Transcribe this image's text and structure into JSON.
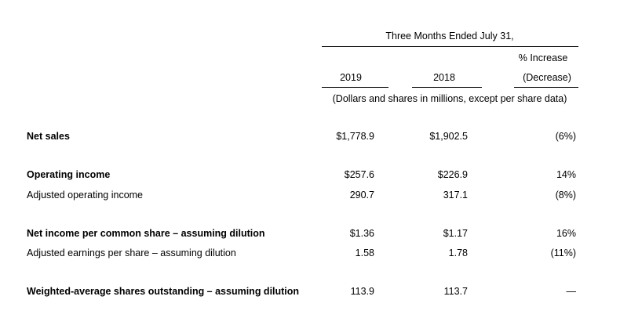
{
  "header": {
    "period": "Three Months Ended July 31,",
    "columns": [
      "2019",
      "2018"
    ],
    "change_column": [
      "% Increase",
      "(Decrease)"
    ],
    "unit_note": "(Dollars and shares in millions, except per share data)"
  },
  "table": {
    "rows": [
      {
        "label": "Net sales",
        "bold": true,
        "cells": [
          "$1,778.9",
          "$1,902.5",
          "(6%)"
        ]
      },
      {
        "label": "Operating income",
        "bold": true,
        "cells": [
          "$257.6",
          "$226.9",
          "14%"
        ]
      },
      {
        "label": "Adjusted operating income",
        "bold": false,
        "cells": [
          "290.7",
          "317.1",
          "(8%)"
        ]
      },
      {
        "label": "Net income per common share – assuming dilution",
        "bold": true,
        "cells": [
          "$1.36",
          "$1.17",
          "16%"
        ]
      },
      {
        "label": "Adjusted earnings per share – assuming dilution",
        "bold": false,
        "cells": [
          "1.58",
          "1.78",
          "(11%)"
        ]
      },
      {
        "label": "Weighted-average shares outstanding – assuming dilution",
        "bold": true,
        "cells": [
          "113.9",
          "113.7",
          "—"
        ]
      }
    ]
  }
}
